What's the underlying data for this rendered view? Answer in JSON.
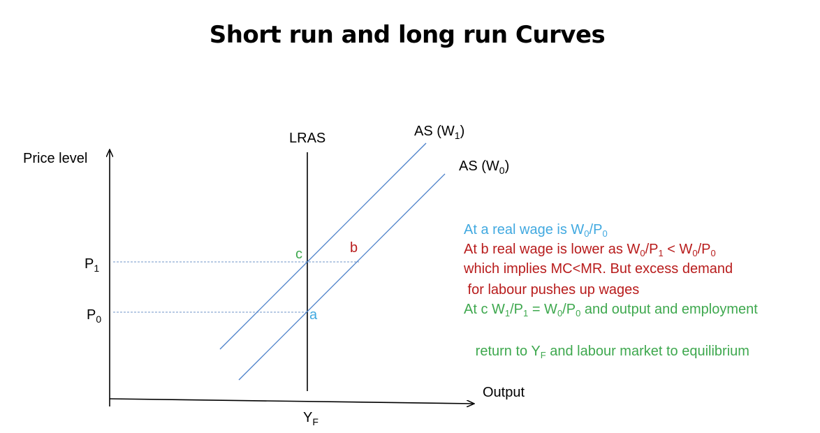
{
  "title": "Short run and long run Curves",
  "colors": {
    "curve": "#4a7fc9",
    "guide": "#6f96c9",
    "note_a": "#41a9e0",
    "note_b": "#b81c1c",
    "note_c": "#3ea84e"
  },
  "axes": {
    "y_label": "Price level",
    "x_label": "Output"
  },
  "curves": {
    "lras": "LRAS",
    "as_w1": {
      "main": "AS (W",
      "sub": "1",
      "close": ")"
    },
    "as_w0": {
      "main": "AS (W",
      "sub": "0",
      "close": ")"
    }
  },
  "price_levels": [
    {
      "main": "P",
      "sub": "1"
    },
    {
      "main": "P",
      "sub": "0"
    }
  ],
  "output_level": {
    "main": "Y",
    "sub": "F"
  },
  "points": {
    "a": "a",
    "b": "b",
    "c": "c"
  },
  "notes": {
    "line1": {
      "text_1": "At a real wage is W",
      "sub_1": "0",
      "text_2": "/P",
      "sub_2": "0"
    },
    "line2": {
      "text_1": "At b real wage is lower  as W",
      "sub_1": "0",
      "text_2": "/P",
      "sub_2": "1",
      "text_3": " < W",
      "sub_3": "0",
      "text_4": "/P",
      "sub_4": "0"
    },
    "line3": "which implies MC<MR. But excess demand",
    "line4": " for labour pushes up wages",
    "line5": {
      "text_1": "At c W",
      "sub_1": "1",
      "text_2": "/P",
      "sub_2": "1",
      "text_3": " = W",
      "sub_3": "0",
      "text_4": "/P",
      "sub_4": "0",
      "text_5": " and output and employment"
    },
    "line6": {
      "text_1": " return to Y",
      "sub_1": "F",
      "text_2": " and labour market to equilibrium"
    }
  }
}
